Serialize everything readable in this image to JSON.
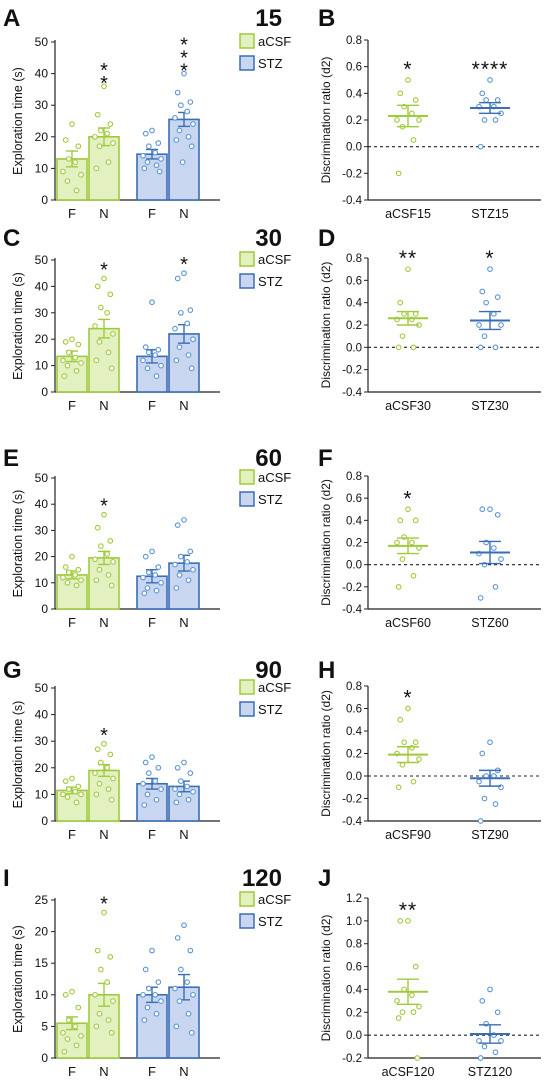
{
  "colors": {
    "acsf": "#9fca3c",
    "acsf_fill": "#e3f0c0",
    "stz": "#3a6db5",
    "stz_fill": "#c8d7ef",
    "stz_point": "#5b95d6",
    "axis": "#222222",
    "text": "#111111"
  },
  "chart_data": [
    {
      "panel": "A",
      "time_label": "15",
      "type": "bar",
      "ylabel": "Exploration time (s)",
      "ylim": [
        0,
        50
      ],
      "yticks": [
        0,
        10,
        20,
        30,
        40,
        50
      ],
      "legend": [
        "aCSF",
        "STZ"
      ],
      "bars": [
        {
          "group": "aCSF",
          "category": "F",
          "mean": 13,
          "sem": 2.5,
          "points": [
            24,
            19,
            17,
            13,
            12,
            9,
            8,
            6,
            3
          ]
        },
        {
          "group": "aCSF",
          "category": "N",
          "mean": 20,
          "sem": 2.8,
          "points": [
            36,
            27,
            24,
            22,
            21,
            20,
            18,
            17,
            12,
            10
          ],
          "stars": "**"
        },
        {
          "group": "STZ",
          "category": "F",
          "mean": 14.5,
          "sem": 1.5,
          "points": [
            22,
            21,
            18,
            17,
            15,
            14,
            13,
            12,
            11,
            10,
            9
          ]
        },
        {
          "group": "STZ",
          "category": "N",
          "mean": 25.5,
          "sem": 2.2,
          "points": [
            40,
            34,
            31,
            30,
            28,
            26,
            24,
            22,
            20,
            19,
            17,
            12
          ],
          "stars": "***"
        }
      ]
    },
    {
      "panel": "B",
      "type": "scatter",
      "ylabel": "Discrimination ratio (d2)",
      "ylim": [
        -0.4,
        0.8
      ],
      "yticks": [
        -0.4,
        -0.2,
        0.0,
        0.2,
        0.4,
        0.6,
        0.8
      ],
      "groups": [
        {
          "name": "aCSF15",
          "color": "aCSF",
          "mean": 0.23,
          "sem": 0.08,
          "points": [
            0.5,
            0.4,
            0.35,
            0.3,
            0.25,
            0.2,
            0.2,
            0.15,
            0.05,
            -0.2
          ],
          "stars": "*"
        },
        {
          "name": "STZ15",
          "color": "STZ",
          "mean": 0.29,
          "sem": 0.04,
          "points": [
            0.5,
            0.4,
            0.35,
            0.35,
            0.3,
            0.3,
            0.25,
            0.2,
            0.2,
            0.0
          ],
          "stars": "****"
        }
      ]
    },
    {
      "panel": "C",
      "time_label": "30",
      "type": "bar",
      "ylabel": "Exploration time (s)",
      "ylim": [
        0,
        50
      ],
      "yticks": [
        0,
        10,
        20,
        30,
        40,
        50
      ],
      "legend": [
        "aCSF",
        "STZ"
      ],
      "bars": [
        {
          "group": "aCSF",
          "category": "F",
          "mean": 13.5,
          "sem": 2,
          "points": [
            20,
            19,
            18,
            15,
            13,
            12,
            11,
            10,
            8,
            6
          ]
        },
        {
          "group": "aCSF",
          "category": "N",
          "mean": 24,
          "sem": 3.5,
          "points": [
            43,
            40,
            37,
            32,
            30,
            25,
            22,
            19,
            15,
            12,
            9
          ]
        },
        {
          "group": "STZ",
          "category": "F",
          "mean": 13.5,
          "sem": 2.5,
          "points": [
            34,
            17,
            16,
            15,
            14,
            12,
            10,
            9,
            6
          ]
        },
        {
          "group": "STZ",
          "category": "N",
          "mean": 22,
          "sem": 3.5,
          "points": [
            45,
            43,
            31,
            30,
            26,
            24,
            20,
            17,
            14,
            12,
            9
          ]
        }
      ],
      "stars_over": [
        {
          "bar": 1,
          "text": "*"
        },
        {
          "bar": 3,
          "text": "*"
        }
      ]
    },
    {
      "panel": "D",
      "type": "scatter",
      "ylabel": "Discrimination ratio (d2)",
      "ylim": [
        -0.4,
        0.8
      ],
      "yticks": [
        -0.4,
        -0.2,
        0.0,
        0.2,
        0.4,
        0.6,
        0.8
      ],
      "groups": [
        {
          "name": "aCSF30",
          "color": "aCSF",
          "mean": 0.26,
          "sem": 0.06,
          "points": [
            0.7,
            0.4,
            0.3,
            0.3,
            0.25,
            0.25,
            0.2,
            0.1,
            0.0,
            0.0
          ],
          "stars": "**"
        },
        {
          "name": "STZ30",
          "color": "STZ",
          "mean": 0.24,
          "sem": 0.08,
          "points": [
            0.7,
            0.5,
            0.45,
            0.4,
            0.3,
            0.2,
            0.2,
            0.1,
            0.0,
            0.0
          ],
          "stars": "*"
        }
      ]
    },
    {
      "panel": "E",
      "time_label": "60",
      "type": "bar",
      "ylabel": "Exploration time (s)",
      "ylim": [
        0,
        50
      ],
      "yticks": [
        0,
        10,
        20,
        30,
        40,
        50
      ],
      "legend": [
        "aCSF",
        "STZ"
      ],
      "bars": [
        {
          "group": "aCSF",
          "category": "F",
          "mean": 13,
          "sem": 1.5,
          "points": [
            20,
            16,
            15,
            14,
            13,
            12,
            11,
            10,
            9
          ]
        },
        {
          "group": "aCSF",
          "category": "N",
          "mean": 19.5,
          "sem": 2.5,
          "points": [
            36,
            31,
            26,
            24,
            21,
            19,
            18,
            15,
            13,
            11,
            9
          ]
        },
        {
          "group": "STZ",
          "category": "F",
          "mean": 12.5,
          "sem": 2.5,
          "points": [
            22,
            20,
            16,
            14,
            13,
            12,
            10,
            8,
            7,
            6
          ]
        },
        {
          "group": "STZ",
          "category": "N",
          "mean": 17.5,
          "sem": 3,
          "points": [
            34,
            32,
            22,
            20,
            18,
            17,
            15,
            13,
            11,
            8
          ]
        }
      ],
      "stars_over": [
        {
          "bar": 1,
          "text": "*"
        }
      ]
    },
    {
      "panel": "F",
      "type": "scatter",
      "ylabel": "Discrimination ratio (d2)",
      "ylim": [
        -0.4,
        0.8
      ],
      "yticks": [
        -0.4,
        -0.2,
        0.0,
        0.2,
        0.4,
        0.6,
        0.8
      ],
      "groups": [
        {
          "name": "aCSF60",
          "color": "aCSF",
          "mean": 0.17,
          "sem": 0.07,
          "points": [
            0.5,
            0.4,
            0.4,
            0.25,
            0.2,
            0.2,
            0.15,
            0.05,
            -0.1,
            -0.2
          ],
          "stars": "*"
        },
        {
          "name": "STZ60",
          "color": "STZ",
          "mean": 0.11,
          "sem": 0.1,
          "points": [
            0.5,
            0.5,
            0.45,
            0.2,
            0.15,
            0.1,
            0.05,
            0.0,
            -0.2,
            -0.3
          ]
        }
      ]
    },
    {
      "panel": "G",
      "time_label": "90",
      "type": "bar",
      "ylabel": "Exploration time (s)",
      "ylim": [
        0,
        50
      ],
      "yticks": [
        0,
        10,
        20,
        30,
        40,
        50
      ],
      "legend": [
        "aCSF",
        "STZ"
      ],
      "bars": [
        {
          "group": "aCSF",
          "category": "F",
          "mean": 11.5,
          "sem": 1.2,
          "points": [
            16,
            15,
            13,
            12,
            11,
            10,
            10,
            9,
            7
          ]
        },
        {
          "group": "aCSF",
          "category": "N",
          "mean": 19,
          "sem": 2.2,
          "points": [
            29,
            27,
            25,
            22,
            20,
            18,
            16,
            14,
            12,
            10,
            8
          ]
        },
        {
          "group": "STZ",
          "category": "F",
          "mean": 14,
          "sem": 2,
          "points": [
            24,
            22,
            20,
            18,
            15,
            14,
            12,
            10,
            8,
            6
          ]
        },
        {
          "group": "STZ",
          "category": "N",
          "mean": 13,
          "sem": 2,
          "points": [
            22,
            20,
            18,
            15,
            13,
            12,
            11,
            10,
            8,
            7
          ]
        }
      ],
      "stars_over": [
        {
          "bar": 1,
          "text": "*"
        }
      ]
    },
    {
      "panel": "H",
      "type": "scatter",
      "ylabel": "Discrimination ratio (d2)",
      "ylim": [
        -0.4,
        0.8
      ],
      "yticks": [
        -0.4,
        -0.2,
        0.0,
        0.2,
        0.4,
        0.6,
        0.8
      ],
      "groups": [
        {
          "name": "aCSF90",
          "color": "aCSF",
          "mean": 0.19,
          "sem": 0.07,
          "points": [
            0.6,
            0.5,
            0.3,
            0.3,
            0.25,
            0.2,
            0.15,
            0.1,
            -0.05,
            -0.1
          ],
          "stars": "*"
        },
        {
          "name": "STZ90",
          "color": "STZ",
          "mean": -0.02,
          "sem": 0.07,
          "points": [
            0.3,
            0.2,
            0.05,
            0.0,
            0.0,
            -0.05,
            -0.1,
            -0.2,
            -0.25,
            -0.4
          ]
        }
      ]
    },
    {
      "panel": "I",
      "time_label": "120",
      "type": "bar",
      "ylabel": "Exploration time (s)",
      "ylim": [
        0,
        25
      ],
      "yticks": [
        0,
        5,
        10,
        15,
        20,
        25
      ],
      "legend": [
        "aCSF",
        "STZ"
      ],
      "bars": [
        {
          "group": "aCSF",
          "category": "F",
          "mean": 5.5,
          "sem": 1,
          "points": [
            10.5,
            10,
            8,
            6,
            5,
            4,
            3.5,
            3,
            2,
            1
          ]
        },
        {
          "group": "aCSF",
          "category": "N",
          "mean": 10,
          "sem": 1.8,
          "points": [
            23,
            17,
            16,
            14,
            12,
            10,
            9,
            7,
            6,
            5,
            4
          ]
        },
        {
          "group": "STZ",
          "category": "F",
          "mean": 10,
          "sem": 1.2,
          "points": [
            17,
            14,
            12,
            11,
            10,
            10,
            9,
            8,
            7,
            6
          ]
        },
        {
          "group": "STZ",
          "category": "N",
          "mean": 11.2,
          "sem": 2,
          "points": [
            21,
            19,
            17,
            14,
            12,
            11,
            10,
            9,
            7,
            5,
            4
          ]
        }
      ],
      "stars_over": [
        {
          "bar": 1,
          "text": "*"
        }
      ]
    },
    {
      "panel": "J",
      "type": "scatter",
      "ylabel": "Discrimination ratio (d2)",
      "ylim": [
        -0.2,
        1.2
      ],
      "yticks": [
        -0.2,
        0.0,
        0.2,
        0.4,
        0.6,
        0.8,
        1.0,
        1.2
      ],
      "groups": [
        {
          "name": "aCSF120",
          "color": "aCSF",
          "mean": 0.38,
          "sem": 0.11,
          "points": [
            1.0,
            1.0,
            0.6,
            0.4,
            0.35,
            0.3,
            0.25,
            0.2,
            0.2,
            0.15,
            -0.2
          ],
          "stars": "**"
        },
        {
          "name": "STZ120",
          "color": "STZ",
          "mean": 0.01,
          "sem": 0.08,
          "points": [
            0.4,
            0.3,
            0.2,
            0.1,
            0.0,
            -0.05,
            -0.05,
            -0.1,
            -0.15,
            -0.2
          ]
        }
      ]
    }
  ]
}
